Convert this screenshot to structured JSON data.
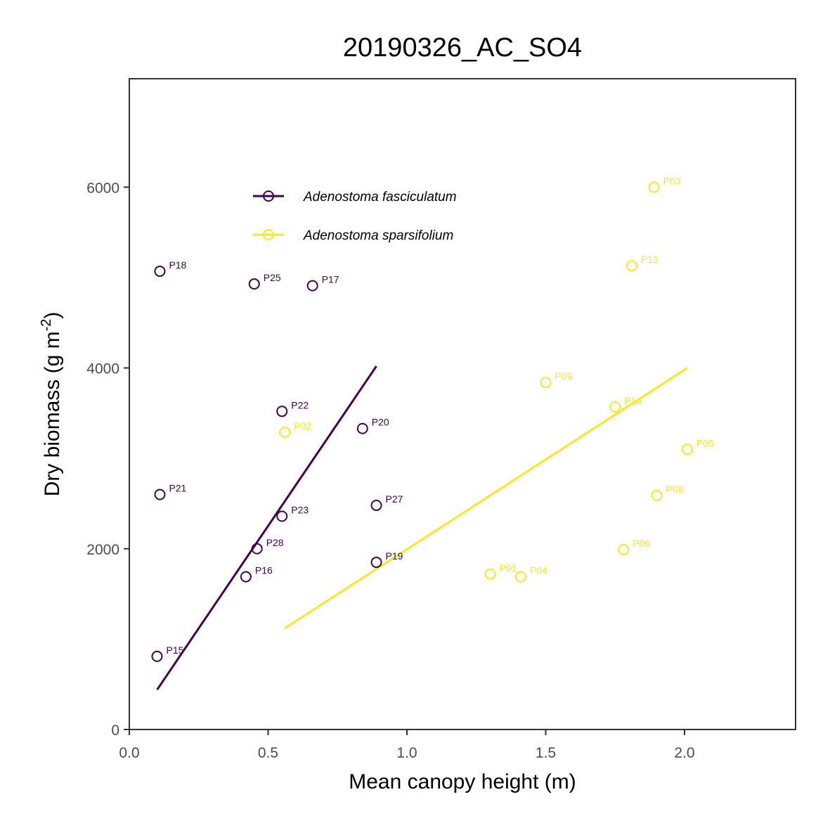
{
  "chart_data": {
    "type": "scatter",
    "title": "20190326_AC_SO4",
    "xlabel": "Mean canopy height (m)",
    "ylabel_main": "Dry biomass (g m",
    "ylabel_sup": "-2",
    "ylabel_end": ")",
    "xlim": [
      0.0,
      2.4
    ],
    "ylim": [
      0,
      7200
    ],
    "xticks": [
      "0.0",
      "0.5",
      "1.0",
      "1.5",
      "2.0"
    ],
    "xtick_values": [
      0.0,
      0.5,
      1.0,
      1.5,
      2.0
    ],
    "yticks": [
      "0",
      "2000",
      "4000",
      "6000"
    ],
    "ytick_values": [
      0,
      2000,
      4000,
      6000
    ],
    "grid": false,
    "legend_position": "top-left inside",
    "series": [
      {
        "name": "Adenostoma fasciculatum",
        "color": "#440154",
        "points": [
          {
            "label": "P18",
            "x": 0.11,
            "y": 5070
          },
          {
            "label": "P25",
            "x": 0.45,
            "y": 4930
          },
          {
            "label": "P17",
            "x": 0.66,
            "y": 4910
          },
          {
            "label": "P22",
            "x": 0.55,
            "y": 3520
          },
          {
            "label": "P20",
            "x": 0.84,
            "y": 3330
          },
          {
            "label": "P21",
            "x": 0.11,
            "y": 2600
          },
          {
            "label": "P27",
            "x": 0.89,
            "y": 2480
          },
          {
            "label": "P23",
            "x": 0.55,
            "y": 2360
          },
          {
            "label": "P28",
            "x": 0.46,
            "y": 2000
          },
          {
            "label": "P19",
            "x": 0.89,
            "y": 1850
          },
          {
            "label": "P16",
            "x": 0.42,
            "y": 1690
          },
          {
            "label": "P15",
            "x": 0.1,
            "y": 810
          }
        ],
        "fit": {
          "x": [
            0.1,
            0.89
          ],
          "y": [
            440,
            4020
          ]
        }
      },
      {
        "name": "Adenostoma sparsifolium",
        "color": "#fde725",
        "points": [
          {
            "label": "P03",
            "x": 1.89,
            "y": 6000
          },
          {
            "label": "P13",
            "x": 1.81,
            "y": 5130
          },
          {
            "label": "P09",
            "x": 1.5,
            "y": 3840
          },
          {
            "label": "P14",
            "x": 1.75,
            "y": 3570
          },
          {
            "label": "P02",
            "x": 0.56,
            "y": 3290
          },
          {
            "label": "P05",
            "x": 2.01,
            "y": 3100
          },
          {
            "label": "P08",
            "x": 1.9,
            "y": 2590
          },
          {
            "label": "P06",
            "x": 1.78,
            "y": 1990
          },
          {
            "label": "P01",
            "x": 1.3,
            "y": 1720
          },
          {
            "label": "P04",
            "x": 1.41,
            "y": 1690
          }
        ],
        "fit": {
          "x": [
            0.56,
            2.01
          ],
          "y": [
            1120,
            4000
          ]
        }
      }
    ]
  }
}
